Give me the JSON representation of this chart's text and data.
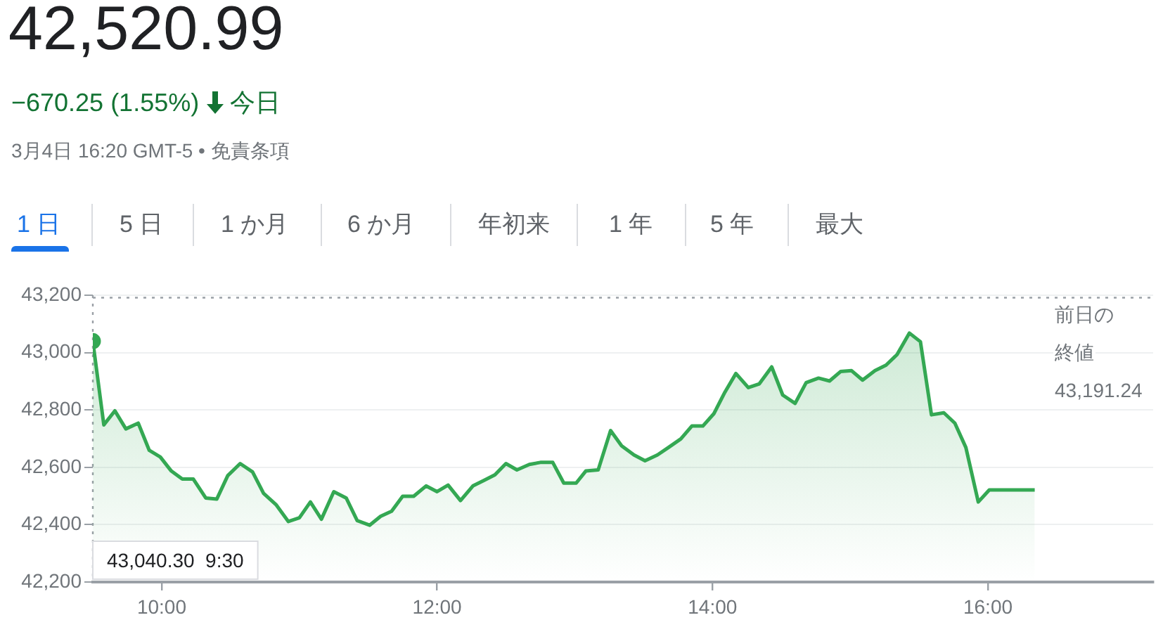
{
  "chart_data": {
    "type": "area",
    "title": "42,520.99",
    "subtitle": "−670.25 (1.55%)",
    "annotations": [
      "今日",
      "3月4日 16:20 GMT-5 • 免責条項",
      "1 日",
      "5 日",
      "1 か月",
      "6 か月",
      "年初来",
      "1 年",
      "5 年",
      "最大",
      "43,040.30  9:30"
    ],
    "x": [
      9.5,
      9.58,
      9.66,
      9.74,
      9.83,
      9.91,
      9.99,
      10.07,
      10.15,
      10.23,
      10.32,
      10.4,
      10.48,
      10.57,
      10.66,
      10.74,
      10.83,
      10.92,
      11.0,
      11.08,
      11.16,
      11.25,
      11.34,
      11.42,
      11.51,
      11.59,
      11.67,
      11.75,
      11.83,
      11.92,
      12.0,
      12.08,
      12.17,
      12.26,
      12.34,
      12.42,
      12.5,
      12.58,
      12.67,
      12.75,
      12.84,
      12.92,
      13.01,
      13.08,
      13.17,
      13.26,
      13.34,
      13.43,
      13.51,
      13.6,
      13.68,
      13.77,
      13.85,
      13.93,
      14.01,
      14.09,
      14.17,
      14.26,
      14.34,
      14.43,
      14.51,
      14.6,
      14.68,
      14.77,
      14.85,
      14.93,
      15.01,
      15.09,
      15.18,
      15.26,
      15.34,
      15.43,
      15.51,
      15.59,
      15.68,
      15.76,
      15.84,
      15.93,
      16.01,
      16.34
    ],
    "series": [
      {
        "color": "#34a853",
        "values": [
          43040,
          42748,
          42797,
          42734,
          42754,
          42659,
          42636,
          42587,
          42559,
          42559,
          42493,
          42489,
          42571,
          42613,
          42584,
          42509,
          42470,
          42411,
          42424,
          42479,
          42419,
          42515,
          42493,
          42414,
          42398,
          42429,
          42447,
          42499,
          42499,
          42535,
          42515,
          42538,
          42484,
          42535,
          42554,
          42574,
          42613,
          42591,
          42610,
          42617,
          42617,
          42545,
          42545,
          42587,
          42591,
          42728,
          42675,
          42643,
          42623,
          42643,
          42669,
          42699,
          42744,
          42744,
          42787,
          42862,
          42927,
          42878,
          42891,
          42950,
          42852,
          42823,
          42895,
          42911,
          42901,
          42934,
          42937,
          42904,
          42937,
          42956,
          42993,
          43068,
          43038,
          42783,
          42790,
          42754,
          42669,
          42479,
          42521,
          42521
        ]
      }
    ],
    "xlim": [
      9.5,
      17.2
    ],
    "xticks": [
      {
        "value": 10,
        "label": "10:00"
      },
      {
        "value": 12,
        "label": "12:00"
      },
      {
        "value": 14,
        "label": "14:00"
      },
      {
        "value": 16,
        "label": "16:00"
      }
    ],
    "ylim": [
      42200,
      43200
    ],
    "yticks": [
      {
        "value": 42200,
        "label": "42,200"
      },
      {
        "value": 42400,
        "label": "42,400"
      },
      {
        "value": 42600,
        "label": "42,600"
      },
      {
        "value": 42800,
        "label": "42,800"
      },
      {
        "value": 43000,
        "label": "43,000"
      },
      {
        "value": 43200,
        "label": "43,200"
      }
    ],
    "ref_lines": [
      {
        "axis": "y",
        "value": 43191.24,
        "label": "前日の終値\n43,191.24",
        "color": "#9aa0a6",
        "line_style": "dotted"
      },
      {
        "axis": "x",
        "value": 9.5,
        "color": "#9aa0a6",
        "line_style": "dotted"
      }
    ],
    "grid": "y",
    "legend": false,
    "marker": "none",
    "line_style": "solid"
  }
}
